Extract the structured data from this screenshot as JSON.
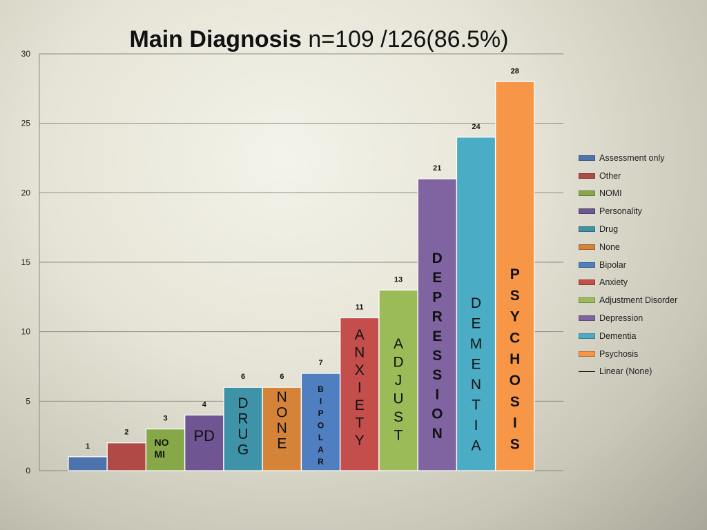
{
  "title_bold": "Main Diagnosis",
  "title_rest": " n=109 /126(86.5%)",
  "chart_data": {
    "type": "bar",
    "title": "Main Diagnosis n=109 /126(86.5%)",
    "categories": [
      "Assessment only",
      "Other",
      "NOMI",
      "Personality",
      "Drug",
      "None",
      "Bipolar",
      "Anxiety",
      "Adjustment Disorder",
      "Depression",
      "Dementia",
      "Psychosis"
    ],
    "values": [
      1,
      2,
      3,
      4,
      6,
      6,
      7,
      11,
      13,
      21,
      24,
      28
    ],
    "ylim": [
      0,
      30
    ],
    "yticks": [
      0,
      5,
      10,
      15,
      20,
      25,
      30
    ],
    "grid": true,
    "legend_position": "right",
    "colors": [
      "#4d73ad",
      "#b04a46",
      "#87a848",
      "#6f5591",
      "#3f93a8",
      "#d48338",
      "#4f7fc0",
      "#c44e4b",
      "#9bbb59",
      "#8064a2",
      "#4bacc6",
      "#f79646"
    ],
    "bar_labels": [
      "",
      "",
      "NO MI",
      "PD",
      "DRUG",
      "NONE",
      "BIPOLAR",
      "ANXIETY",
      "ADJUST",
      "DEPRESSION",
      "DEMENTIA",
      "PSYCHOSIS"
    ],
    "legend": [
      "Assessment only",
      "Other",
      "NOMI",
      "Personality",
      "Drug",
      "None",
      "Bipolar",
      "Anxiety",
      "Adjustment Disorder",
      "Depression",
      "Dementia",
      "Psychosis",
      "Linear (None)"
    ]
  }
}
